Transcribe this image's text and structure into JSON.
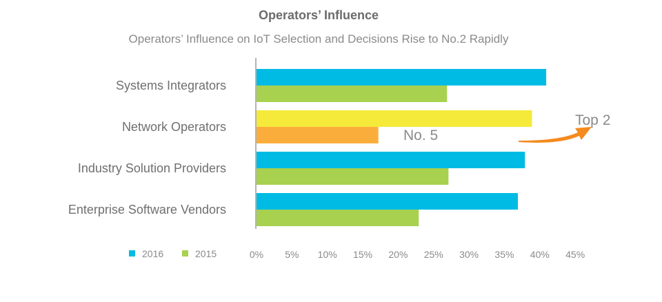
{
  "chart_data": {
    "type": "bar",
    "orientation": "horizontal",
    "title": "Operators’ Influence",
    "subtitle": "Operators’ Influence on IoT Selection and Decisions Rise to No.2 Rapidly",
    "categories": [
      "Systems Integrators",
      "Network Operators",
      "Industry Solution Providers",
      "Enterprise Software Vendors"
    ],
    "series": [
      {
        "name": "2016",
        "color": "#00bbe3",
        "values": [
          41,
          39,
          38,
          37
        ]
      },
      {
        "name": "2015",
        "color": "#a8d14f",
        "values": [
          27,
          17.3,
          27.2,
          23
        ]
      }
    ],
    "highlight": {
      "category": "Network Operators",
      "colors": {
        "2016": "#f5ea3a",
        "2015": "#fbad3c"
      }
    },
    "xlim": [
      0,
      45
    ],
    "xticks": [
      "0%",
      "5%",
      "10%",
      "15%",
      "20%",
      "25%",
      "30%",
      "35%",
      "40%",
      "45%"
    ],
    "legend_position": "bottom-left",
    "annotations": [
      {
        "text": "No. 5",
        "category": "Network Operators",
        "series": "2015"
      },
      {
        "text": "Top 2",
        "category": "Network Operators",
        "series": "2016",
        "arrow_color": "#f58a1f"
      }
    ]
  }
}
